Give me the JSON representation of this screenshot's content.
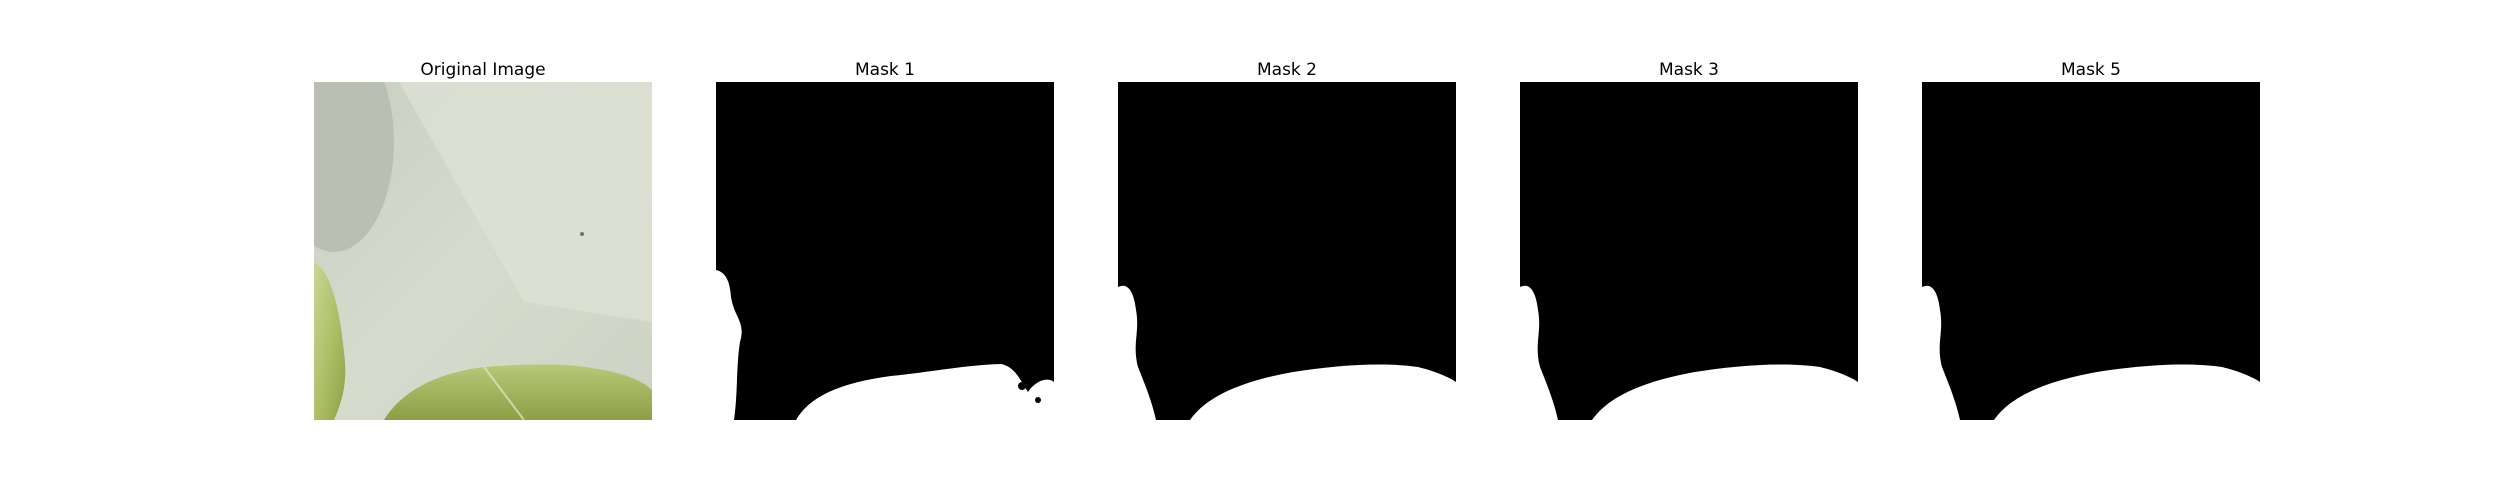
{
  "panels": [
    {
      "title": "Original Image",
      "kind": "photo"
    },
    {
      "title": "Mask 1",
      "kind": "mask"
    },
    {
      "title": "Mask 2",
      "kind": "mask"
    },
    {
      "title": "Mask 3",
      "kind": "mask"
    },
    {
      "title": "Mask 5",
      "kind": "mask"
    }
  ],
  "colors": {
    "background": "#ffffff",
    "mask_background": "#000000",
    "mask_foreground": "#ffffff",
    "photo_backdrop": "#cfd5c6",
    "leaf_light": "#c2d28a",
    "leaf_dark": "#8ea24e"
  }
}
